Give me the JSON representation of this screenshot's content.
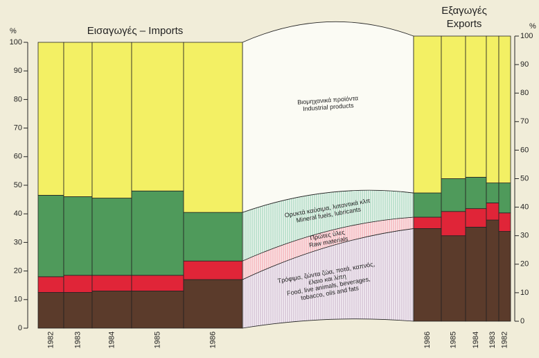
{
  "chart_data": [
    {
      "type": "bar",
      "stacked": true,
      "title": "Εισαγωγές – Imports",
      "y_label": "%",
      "categories": [
        "1982",
        "1983",
        "1984",
        "1985",
        "1986"
      ],
      "ylim": [
        0,
        100
      ],
      "yticks": [
        0,
        10,
        20,
        30,
        40,
        50,
        60,
        70,
        80,
        90,
        100
      ],
      "series": [
        {
          "name": [
            "Food, live animals, beverages,",
            "tobacco, oils and fats"
          ],
          "name_el": [
            "Τρόφιμα, ζώντα ζώα, ποτά, καπνός,",
            "έλαιο και λίπη"
          ],
          "color": "#5b3b2b",
          "values": [
            12.5,
            12.5,
            13,
            13,
            17
          ]
        },
        {
          "name": [
            "Raw materials"
          ],
          "name_el": [
            "Πρώτες ύλες"
          ],
          "color": "#e02538",
          "values": [
            5.5,
            6,
            5.5,
            5.5,
            6.5
          ]
        },
        {
          "name": [
            "Mineral fuels, lubricants"
          ],
          "name_el": [
            "Ορυκτά καύσιμα, λιπαντικά κλπ"
          ],
          "color": "#4f9a5b",
          "values": [
            28.5,
            27.5,
            27,
            29.5,
            17
          ]
        },
        {
          "name": [
            "Industrial products"
          ],
          "name_el": [
            "Βιομηχανικά προϊόντα"
          ],
          "color": "#f3f064",
          "values": [
            53.5,
            54,
            54.5,
            52,
            59.5
          ]
        }
      ]
    },
    {
      "type": "bar",
      "stacked": true,
      "title": "Εξαγωγές",
      "subtitle": "Exports",
      "y_label": "%",
      "categories": [
        "1986",
        "1985",
        "1984",
        "1983",
        "1982"
      ],
      "ylim": [
        0,
        100
      ],
      "yticks": [
        0,
        10,
        20,
        30,
        40,
        50,
        60,
        70,
        80,
        90,
        100
      ],
      "series": [
        {
          "color": "#5b3b2b",
          "values": [
            32.5,
            30,
            33,
            35.5,
            31.5
          ]
        },
        {
          "color": "#e02538",
          "values": [
            4,
            8.5,
            6.5,
            6,
            6.5
          ]
        },
        {
          "color": "#4f9a5b",
          "values": [
            8.5,
            11.5,
            11,
            7,
            10.5
          ]
        },
        {
          "color": "#f3f064",
          "values": [
            55,
            50,
            49.5,
            51.5,
            51.5
          ]
        }
      ]
    }
  ]
}
